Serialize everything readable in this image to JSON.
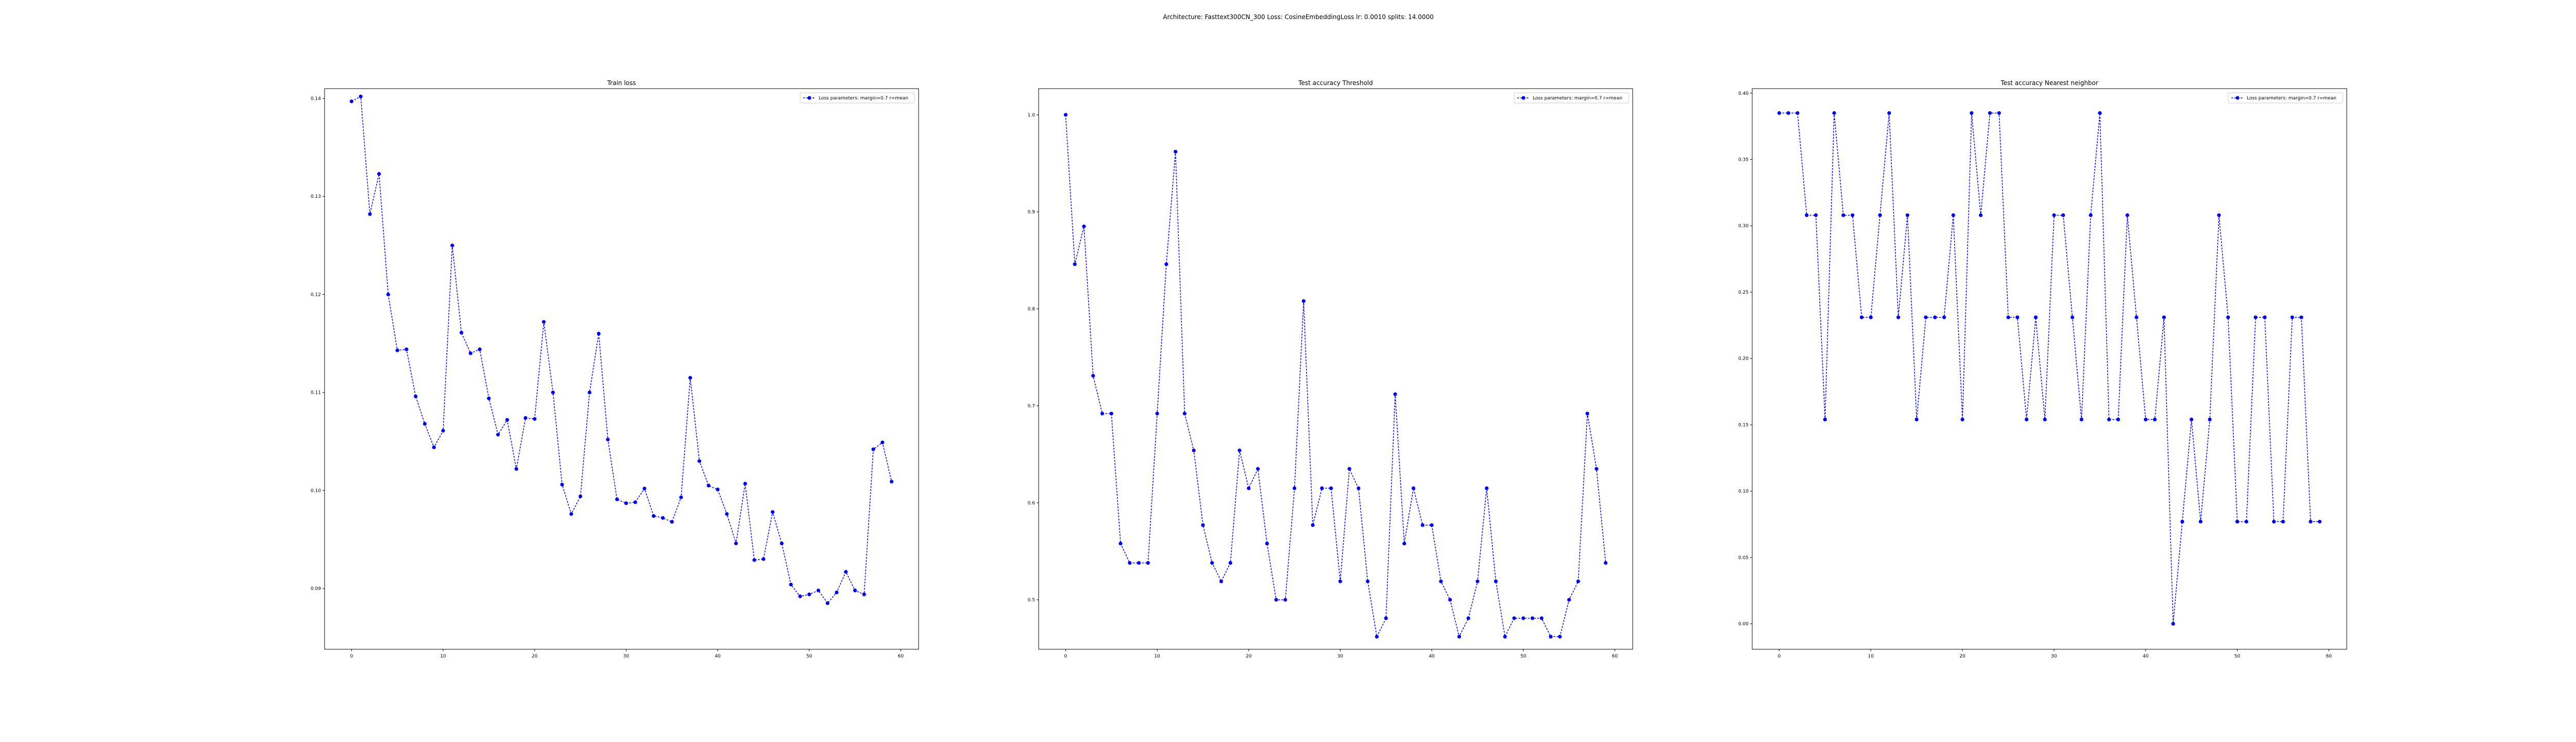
{
  "suptitle": "Architecture: Fasttext300CN_300 Loss: CosineEmbeddingLoss lr: 0.0010 splits: 14.0000",
  "line_color": "#0000ff",
  "chart_data": [
    {
      "type": "line",
      "title": "Train loss",
      "xlabel": "",
      "ylabel": "",
      "grid": false,
      "legend": "top-right",
      "xlim": [
        -2.95,
        61.95
      ],
      "ylim": [
        0.0838,
        0.141
      ],
      "xticks": [
        0,
        10,
        20,
        30,
        40,
        50,
        60
      ],
      "xtick_labels": [
        "0",
        "10",
        "20",
        "30",
        "40",
        "50",
        "60"
      ],
      "yticks": [
        0.09,
        0.1,
        0.11,
        0.12,
        0.13,
        0.14
      ],
      "ytick_labels": [
        "0.09",
        "0.10",
        "0.11",
        "0.12",
        "0.13",
        "0.14"
      ],
      "series": [
        {
          "name": "Loss parameters: margin=0.7 r=mean",
          "x": [
            0,
            1,
            2,
            3,
            4,
            5,
            6,
            7,
            8,
            9,
            10,
            11,
            12,
            13,
            14,
            15,
            16,
            17,
            18,
            19,
            20,
            21,
            22,
            23,
            24,
            25,
            26,
            27,
            28,
            29,
            30,
            31,
            32,
            33,
            34,
            35,
            36,
            37,
            38,
            39,
            40,
            41,
            42,
            43,
            44,
            45,
            46,
            47,
            48,
            49,
            50,
            51,
            52,
            53,
            54,
            55,
            56,
            57,
            58,
            59
          ],
          "y": [
            0.1397,
            0.1402,
            0.1282,
            0.1323,
            0.12,
            0.1143,
            0.1144,
            0.1096,
            0.1068,
            0.1044,
            0.1061,
            0.125,
            0.1161,
            0.114,
            0.1144,
            0.1094,
            0.1057,
            0.1072,
            0.1022,
            0.1074,
            0.1073,
            0.1172,
            0.11,
            0.1006,
            0.0976,
            0.0994,
            0.11,
            0.116,
            0.1052,
            0.0991,
            0.0987,
            0.0988,
            0.1002,
            0.0974,
            0.0972,
            0.0968,
            0.0993,
            0.1115,
            0.103,
            0.1005,
            0.1001,
            0.0976,
            0.0946,
            0.1007,
            0.0929,
            0.093,
            0.0978,
            0.0946,
            0.0904,
            0.0892,
            0.0894,
            0.0898,
            0.0885,
            0.0896,
            0.0917,
            0.0898,
            0.0894,
            0.1042,
            0.1049,
            0.1009
          ]
        }
      ]
    },
    {
      "type": "line",
      "title": "Test accuracy Threshold",
      "xlabel": "",
      "ylabel": "",
      "grid": false,
      "legend": "top-right",
      "xlim": [
        -2.95,
        61.95
      ],
      "ylim": [
        0.449,
        1.027
      ],
      "xticks": [
        0,
        10,
        20,
        30,
        40,
        50,
        60
      ],
      "xtick_labels": [
        "0",
        "10",
        "20",
        "30",
        "40",
        "50",
        "60"
      ],
      "yticks": [
        0.5,
        0.6,
        0.7,
        0.8,
        0.9,
        1.0
      ],
      "ytick_labels": [
        "0.5",
        "0.6",
        "0.7",
        "0.8",
        "0.9",
        "1.0"
      ],
      "series": [
        {
          "name": "Loss parameters: margin=0.7 r=mean",
          "x": [
            0,
            1,
            2,
            3,
            4,
            5,
            6,
            7,
            8,
            9,
            10,
            11,
            12,
            13,
            14,
            15,
            16,
            17,
            18,
            19,
            20,
            21,
            22,
            23,
            24,
            25,
            26,
            27,
            28,
            29,
            30,
            31,
            32,
            33,
            34,
            35,
            36,
            37,
            38,
            39,
            40,
            41,
            42,
            43,
            44,
            45,
            46,
            47,
            48,
            49,
            50,
            51,
            52,
            53,
            54,
            55,
            56,
            57,
            58,
            59
          ],
          "y": [
            1.0,
            0.846,
            0.885,
            0.731,
            0.692,
            0.692,
            0.558,
            0.538,
            0.538,
            0.538,
            0.692,
            0.846,
            0.962,
            0.692,
            0.654,
            0.577,
            0.538,
            0.519,
            0.538,
            0.654,
            0.615,
            0.635,
            0.558,
            0.5,
            0.5,
            0.615,
            0.808,
            0.577,
            0.615,
            0.615,
            0.519,
            0.635,
            0.615,
            0.519,
            0.462,
            0.481,
            0.712,
            0.558,
            0.615,
            0.577,
            0.577,
            0.519,
            0.5,
            0.462,
            0.481,
            0.519,
            0.615,
            0.519,
            0.462,
            0.481,
            0.481,
            0.481,
            0.481,
            0.462,
            0.462,
            0.5,
            0.519,
            0.692,
            0.635,
            0.538
          ]
        }
      ]
    },
    {
      "type": "line",
      "title": "Test accuracy Nearest neighbor",
      "xlabel": "",
      "ylabel": "",
      "grid": false,
      "legend": "top-right",
      "xlim": [
        -2.95,
        61.95
      ],
      "ylim": [
        -0.0192,
        0.4034
      ],
      "xticks": [
        0,
        10,
        20,
        30,
        40,
        50,
        60
      ],
      "xtick_labels": [
        "0",
        "10",
        "20",
        "30",
        "40",
        "50",
        "60"
      ],
      "yticks": [
        0.0,
        0.05,
        0.1,
        0.15,
        0.2,
        0.25,
        0.3,
        0.35,
        0.4
      ],
      "ytick_labels": [
        "0.00",
        "0.05",
        "0.10",
        "0.15",
        "0.20",
        "0.25",
        "0.30",
        "0.35",
        "0.40"
      ],
      "series": [
        {
          "name": "Loss parameters: margin=0.7 r=mean",
          "x": [
            0,
            1,
            2,
            3,
            4,
            5,
            6,
            7,
            8,
            9,
            10,
            11,
            12,
            13,
            14,
            15,
            16,
            17,
            18,
            19,
            20,
            21,
            22,
            23,
            24,
            25,
            26,
            27,
            28,
            29,
            30,
            31,
            32,
            33,
            34,
            35,
            36,
            37,
            38,
            39,
            40,
            41,
            42,
            43,
            44,
            45,
            46,
            47,
            48,
            49,
            50,
            51,
            52,
            53,
            54,
            55,
            56,
            57,
            58,
            59
          ],
          "y": [
            0.385,
            0.385,
            0.385,
            0.308,
            0.308,
            0.154,
            0.385,
            0.308,
            0.308,
            0.231,
            0.231,
            0.308,
            0.385,
            0.231,
            0.308,
            0.154,
            0.231,
            0.231,
            0.231,
            0.308,
            0.154,
            0.385,
            0.308,
            0.385,
            0.385,
            0.231,
            0.231,
            0.154,
            0.231,
            0.154,
            0.308,
            0.308,
            0.231,
            0.154,
            0.308,
            0.385,
            0.154,
            0.154,
            0.308,
            0.231,
            0.154,
            0.154,
            0.231,
            0.0,
            0.077,
            0.154,
            0.077,
            0.154,
            0.308,
            0.231,
            0.077,
            0.077,
            0.231,
            0.231,
            0.077,
            0.077,
            0.231,
            0.231,
            0.077,
            0.077
          ]
        }
      ]
    }
  ]
}
